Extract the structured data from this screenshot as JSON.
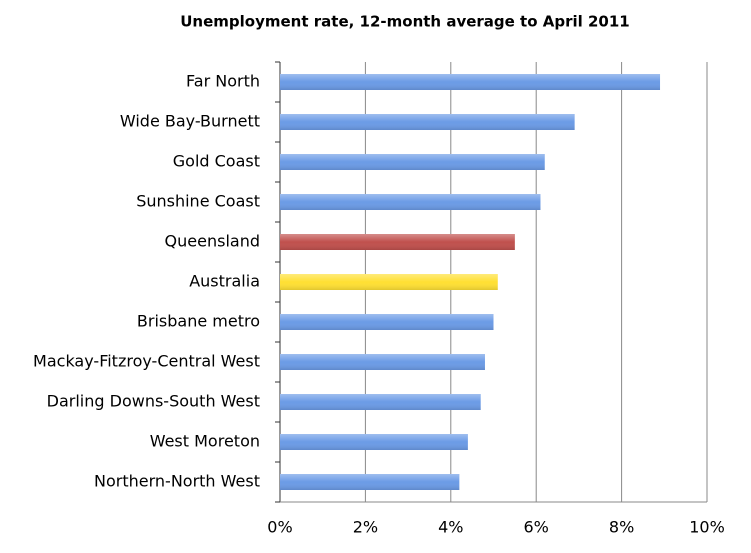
{
  "chart_data": {
    "type": "hbar",
    "title": "Unemployment rate, 12-month average to April 2011",
    "categories": [
      "Far North",
      "Wide Bay-Burnett",
      "Gold Coast",
      "Sunshine Coast",
      "Queensland",
      "Australia",
      "Brisbane metro",
      "Mackay-Fitzroy-Central West",
      "Darling Downs-South West",
      "West Moreton",
      "Northern-North West"
    ],
    "values": [
      8.9,
      6.9,
      6.2,
      6.1,
      5.5,
      5.1,
      5.0,
      4.8,
      4.7,
      4.4,
      4.2
    ],
    "colors": [
      "#6b9be6",
      "#6b9be6",
      "#6b9be6",
      "#6b9be6",
      "#c0504d",
      "#ffe033",
      "#6b9be6",
      "#6b9be6",
      "#6b9be6",
      "#6b9be6",
      "#6b9be6"
    ],
    "xlim": [
      0,
      10
    ],
    "xticks": [
      {
        "value": 0,
        "label": "0%"
      },
      {
        "value": 2,
        "label": "2%"
      },
      {
        "value": 4,
        "label": "4%"
      },
      {
        "value": 6,
        "label": "6%"
      },
      {
        "value": 8,
        "label": "8%"
      },
      {
        "value": 10,
        "label": "10%"
      }
    ],
    "grid": true
  }
}
